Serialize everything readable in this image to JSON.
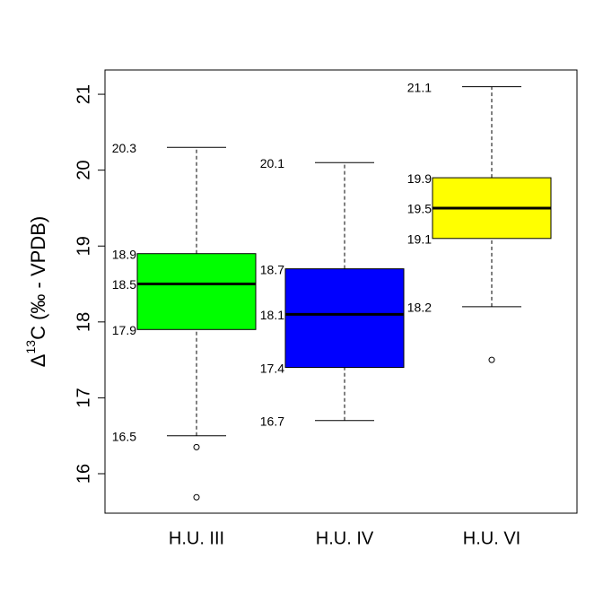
{
  "chart_data": {
    "type": "box",
    "y_label": [
      "Δ",
      "13",
      "C (‰ - VPDB)"
    ],
    "categories": [
      "H.U. III",
      "H.U. IV",
      "H.U. VI"
    ],
    "boxes": [
      {
        "min": 16.5,
        "q1": 17.9,
        "median": 18.5,
        "q3": 18.9,
        "max": 20.3,
        "outliers": [
          16.35,
          15.69
        ],
        "color": "#00ff00"
      },
      {
        "min": 16.7,
        "q1": 17.4,
        "median": 18.1,
        "q3": 18.7,
        "max": 20.1,
        "outliers": [],
        "color": "#0000ff"
      },
      {
        "min": 18.2,
        "q1": 19.1,
        "median": 19.5,
        "q3": 19.9,
        "max": 21.1,
        "outliers": [
          17.5
        ],
        "color": "#ffff00"
      }
    ],
    "ylim": [
      15.48,
      21.32
    ],
    "yticks": [
      16,
      17,
      18,
      19,
      20,
      21
    ]
  }
}
